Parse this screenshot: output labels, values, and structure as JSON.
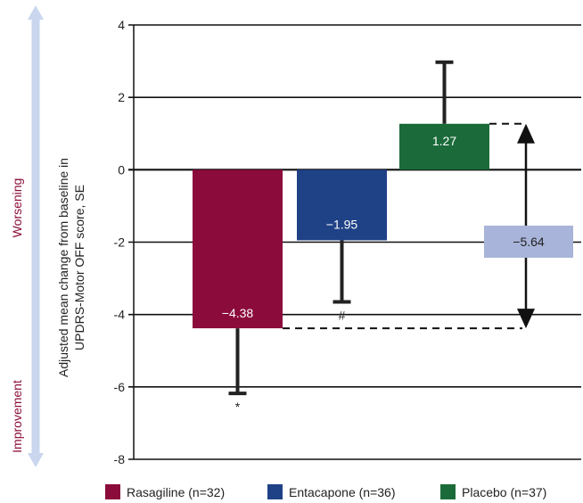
{
  "chart_data": {
    "type": "bar",
    "ylabel_lines": [
      "Adjusted mean change from baseline in",
      "UPDRS-Motor OFF score, SE"
    ],
    "ylim": [
      -8,
      4
    ],
    "yticks": [
      4,
      2,
      0,
      -2,
      -4,
      -6,
      -8
    ],
    "grid": true,
    "legend_position": "bottom",
    "side_labels": {
      "top": "Worsening",
      "bottom": "Improvement"
    },
    "series": [
      {
        "name": "Rasagiline (n=32)",
        "value": -4.38,
        "value_label": "−4.38",
        "se": 1.8,
        "significance": "*",
        "color": "#8b0b3a"
      },
      {
        "name": "Entacapone (n=36)",
        "value": -1.95,
        "value_label": "−1.95",
        "se": 1.7,
        "significance": "#",
        "color": "#1f4287"
      },
      {
        "name": "Placebo (n=37)",
        "value": 1.27,
        "value_label": "1.27",
        "se": 1.7,
        "significance": "",
        "color": "#1b6b3a"
      }
    ],
    "difference": {
      "value": -5.64,
      "label": "−5.64",
      "from": 1.27,
      "to": -4.38
    }
  },
  "colors": {
    "side_arrow": "#c9d6ee",
    "side_text": "#8b0f3b",
    "difference_box": "#a8b4d9",
    "axis": "#111111"
  }
}
